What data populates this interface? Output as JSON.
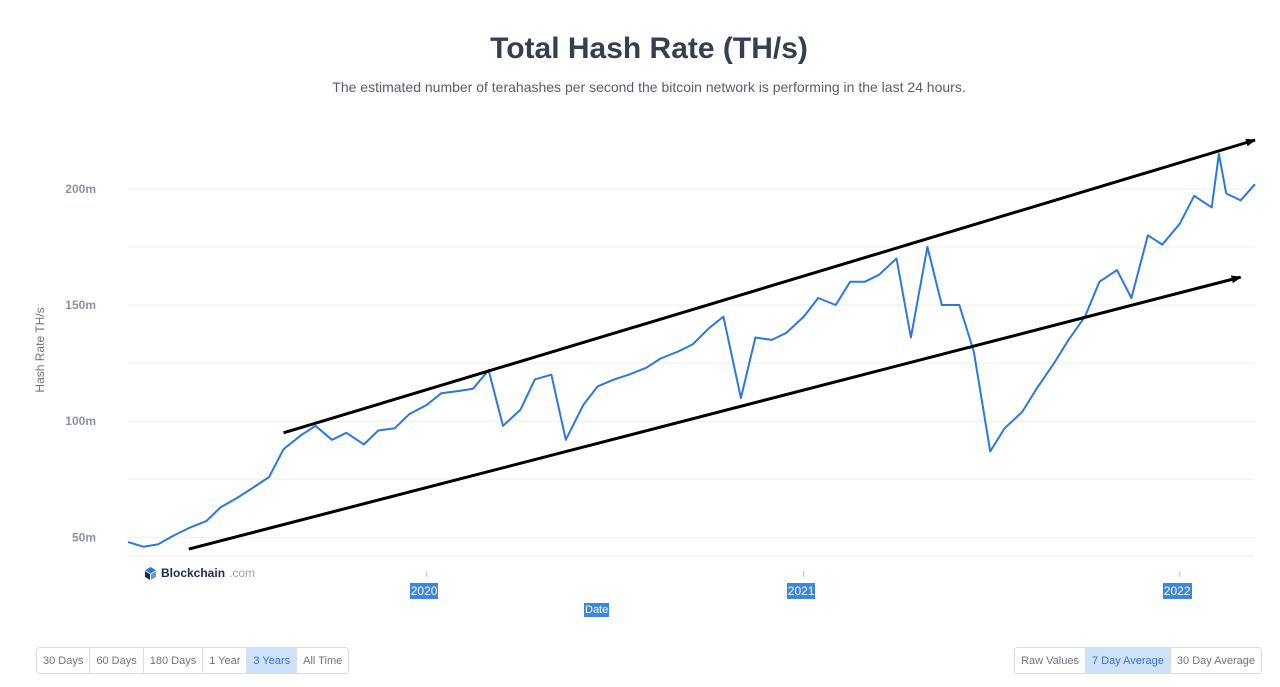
{
  "title": "Total Hash Rate (TH/s)",
  "subtitle": "The estimated number of terahashes per second the bitcoin network is performing in the last 24 hours.",
  "brand": {
    "name": "Blockchain",
    "suffix": ".com"
  },
  "range_buttons": [
    {
      "label": "30 Days",
      "active": false
    },
    {
      "label": "60 Days",
      "active": false
    },
    {
      "label": "180 Days",
      "active": false
    },
    {
      "label": "1 Year",
      "active": false
    },
    {
      "label": "3 Years",
      "active": true
    },
    {
      "label": "All Time",
      "active": false
    }
  ],
  "avg_buttons": [
    {
      "label": "Raw Values",
      "active": false
    },
    {
      "label": "7 Day Average",
      "active": true
    },
    {
      "label": "30 Day Average",
      "active": false
    }
  ],
  "colors": {
    "line": "#2b78dc",
    "arrow": "#000000",
    "grid": "#eceef2",
    "axis_text": "#8a93a6",
    "tick_highlight": "#3b86e0"
  },
  "chart_data": {
    "type": "line",
    "title": "Total Hash Rate (TH/s)",
    "xlabel": "Date",
    "ylabel": "Hash Rate TH/s",
    "y_ticks": [
      {
        "value": 50000000,
        "label": "50m"
      },
      {
        "value": 100000000,
        "label": "100m"
      },
      {
        "value": 150000000,
        "label": "150m"
      },
      {
        "value": 200000000,
        "label": "200m"
      }
    ],
    "x_ticks": [
      {
        "date": "2020-01-01",
        "label": "2020"
      },
      {
        "date": "2021-01-01",
        "label": "2021"
      },
      {
        "date": "2022-01-01",
        "label": "2022"
      }
    ],
    "xlim": [
      "2019-03-17",
      "2022-03-15"
    ],
    "ylim": [
      42000000,
      221000000
    ],
    "grid": true,
    "series": [
      {
        "values": [
          [
            "2019-03-17",
            48000000
          ],
          [
            "2019-04-01",
            46000000
          ],
          [
            "2019-04-15",
            47000000
          ],
          [
            "2019-05-01",
            51000000
          ],
          [
            "2019-05-15",
            54000000
          ],
          [
            "2019-06-01",
            57000000
          ],
          [
            "2019-06-15",
            63000000
          ],
          [
            "2019-07-01",
            67000000
          ],
          [
            "2019-07-15",
            71000000
          ],
          [
            "2019-08-01",
            76000000
          ],
          [
            "2019-08-15",
            88000000
          ],
          [
            "2019-09-01",
            94000000
          ],
          [
            "2019-09-15",
            98000000
          ],
          [
            "2019-10-01",
            92000000
          ],
          [
            "2019-10-15",
            95000000
          ],
          [
            "2019-11-01",
            90000000
          ],
          [
            "2019-11-15",
            96000000
          ],
          [
            "2019-12-01",
            97000000
          ],
          [
            "2019-12-15",
            103000000
          ],
          [
            "2020-01-01",
            107000000
          ],
          [
            "2020-01-15",
            112000000
          ],
          [
            "2020-02-01",
            113000000
          ],
          [
            "2020-02-15",
            114000000
          ],
          [
            "2020-03-01",
            122000000
          ],
          [
            "2020-03-15",
            98000000
          ],
          [
            "2020-04-01",
            105000000
          ],
          [
            "2020-04-15",
            118000000
          ],
          [
            "2020-05-01",
            120000000
          ],
          [
            "2020-05-15",
            92000000
          ],
          [
            "2020-06-01",
            107000000
          ],
          [
            "2020-06-15",
            115000000
          ],
          [
            "2020-07-01",
            118000000
          ],
          [
            "2020-07-15",
            120000000
          ],
          [
            "2020-08-01",
            123000000
          ],
          [
            "2020-08-15",
            127000000
          ],
          [
            "2020-09-01",
            130000000
          ],
          [
            "2020-09-15",
            133000000
          ],
          [
            "2020-10-01",
            140000000
          ],
          [
            "2020-10-15",
            145000000
          ],
          [
            "2020-11-01",
            110000000
          ],
          [
            "2020-11-15",
            136000000
          ],
          [
            "2020-12-01",
            135000000
          ],
          [
            "2020-12-15",
            138000000
          ],
          [
            "2021-01-01",
            145000000
          ],
          [
            "2021-01-15",
            153000000
          ],
          [
            "2021-02-01",
            150000000
          ],
          [
            "2021-02-15",
            160000000
          ],
          [
            "2021-03-01",
            160000000
          ],
          [
            "2021-03-15",
            163000000
          ],
          [
            "2021-04-01",
            170000000
          ],
          [
            "2021-04-15",
            136000000
          ],
          [
            "2021-05-01",
            175000000
          ],
          [
            "2021-05-15",
            150000000
          ],
          [
            "2021-06-01",
            150000000
          ],
          [
            "2021-06-15",
            130000000
          ],
          [
            "2021-07-01",
            87000000
          ],
          [
            "2021-07-15",
            97000000
          ],
          [
            "2021-08-01",
            104000000
          ],
          [
            "2021-08-15",
            114000000
          ],
          [
            "2021-09-01",
            125000000
          ],
          [
            "2021-09-15",
            135000000
          ],
          [
            "2021-10-01",
            145000000
          ],
          [
            "2021-10-15",
            160000000
          ],
          [
            "2021-11-01",
            165000000
          ],
          [
            "2021-11-15",
            153000000
          ],
          [
            "2021-12-01",
            180000000
          ],
          [
            "2021-12-15",
            176000000
          ],
          [
            "2022-01-01",
            185000000
          ],
          [
            "2022-01-15",
            197000000
          ],
          [
            "2022-02-01",
            192000000
          ],
          [
            "2022-02-08",
            215000000
          ],
          [
            "2022-02-15",
            198000000
          ],
          [
            "2022-03-01",
            195000000
          ],
          [
            "2022-03-15",
            202000000
          ]
        ]
      }
    ],
    "annotations": [
      {
        "type": "arrow",
        "label": "",
        "from": [
          "2019-08-15",
          95000000
        ],
        "to": [
          "2022-03-15",
          221000000
        ]
      },
      {
        "type": "arrow",
        "label": "",
        "from": [
          "2019-05-15",
          45000000
        ],
        "to": [
          "2022-03-01",
          162000000
        ]
      }
    ]
  }
}
